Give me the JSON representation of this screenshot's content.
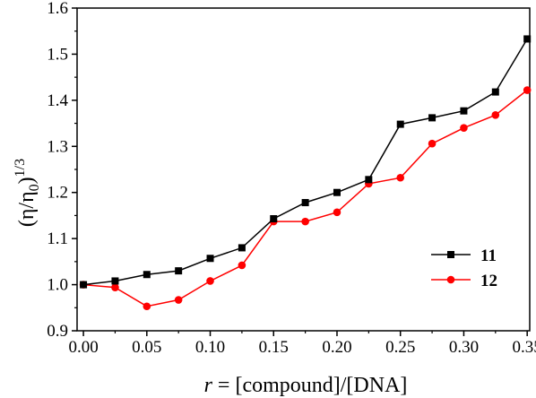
{
  "chart_data": {
    "type": "line",
    "xlabel": {
      "italic": "r",
      "rest": " = [compound]/[DNA]"
    },
    "ylabel": {
      "open": "(η/η",
      "sub": "0",
      "close": ")",
      "sup": "1/3"
    },
    "xlim": [
      -0.005,
      0.352
    ],
    "ylim": [
      0.9,
      1.6
    ],
    "x_ticks": [
      "0.00",
      "0.05",
      "0.10",
      "0.15",
      "0.20",
      "0.25",
      "0.30",
      "0.35"
    ],
    "y_ticks": [
      "0.9",
      "1.0",
      "1.1",
      "1.2",
      "1.3",
      "1.4",
      "1.5",
      "1.6"
    ],
    "grid": false,
    "legend_position": "bottom-right",
    "series": [
      {
        "name": "11",
        "color": "#000000",
        "marker": "square",
        "x": [
          0.0,
          0.025,
          0.05,
          0.075,
          0.1,
          0.125,
          0.15,
          0.175,
          0.2,
          0.225,
          0.25,
          0.275,
          0.3,
          0.325,
          0.35
        ],
        "y": [
          1.0,
          1.008,
          1.022,
          1.03,
          1.057,
          1.08,
          1.143,
          1.178,
          1.2,
          1.228,
          1.348,
          1.362,
          1.377,
          1.418,
          1.533
        ]
      },
      {
        "name": "12",
        "color": "#ff0000",
        "marker": "circle",
        "x": [
          0.0,
          0.025,
          0.05,
          0.075,
          0.1,
          0.125,
          0.15,
          0.175,
          0.2,
          0.225,
          0.25,
          0.275,
          0.3,
          0.325,
          0.35
        ],
        "y": [
          1.0,
          0.994,
          0.953,
          0.967,
          1.008,
          1.042,
          1.137,
          1.137,
          1.157,
          1.219,
          1.232,
          1.306,
          1.34,
          1.368,
          1.422
        ]
      }
    ]
  }
}
